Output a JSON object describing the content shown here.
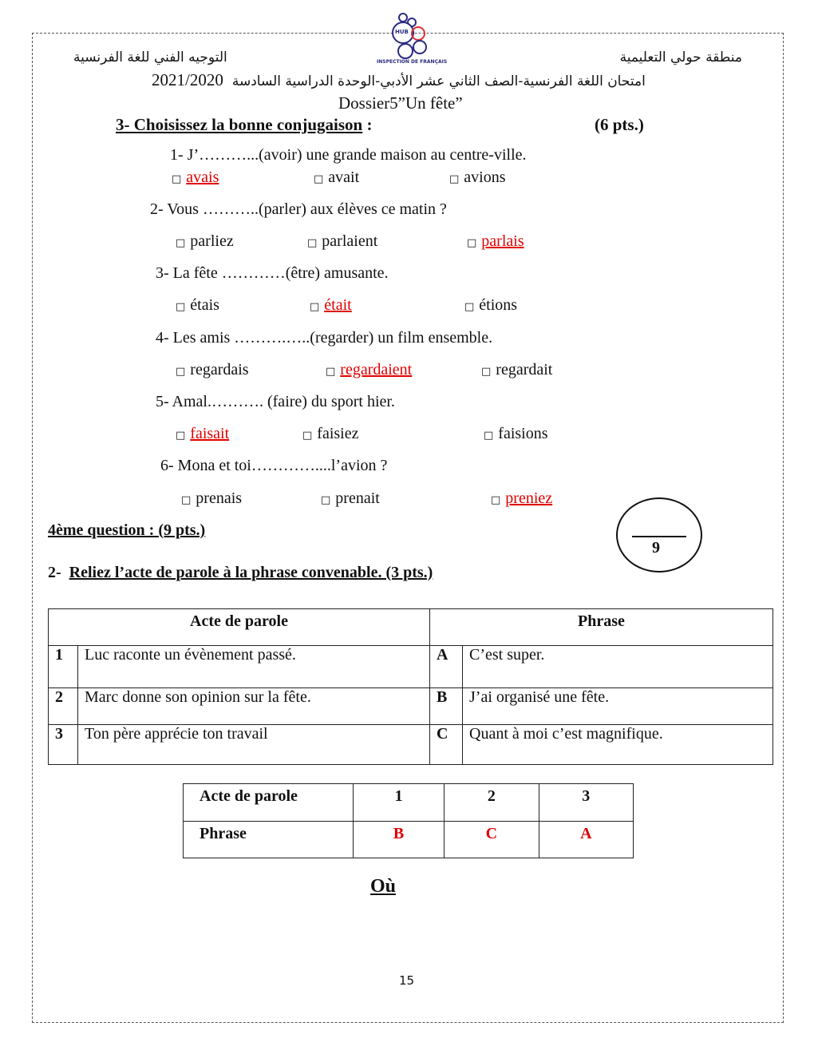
{
  "header": {
    "left_arabic": "التوجيه الفني للغة الفرنسية",
    "right_arabic": "منطقة حولي التعليمية",
    "exam_arabic": "امتحان اللغة الفرنسية-الصف الثاني عشر الأدبي-الوحدة الدراسية السادسة",
    "year": "2021/2020",
    "dossier": "Dossier5”Un fête”",
    "logo_text": "INSPECTION DE FRANÇAIS",
    "logo_badge": "HUB"
  },
  "section3": {
    "title": "3- Choisissez la bonne conjugaison",
    "colon": ":",
    "points": "(6 pts.)",
    "questions": [
      {
        "text": "1- J’………...(avoir) une grande maison au centre-ville.",
        "options": [
          "avais",
          "avait",
          "avions"
        ],
        "correct": 0
      },
      {
        "text": "2- Vous ………..(parler) aux élèves ce matin ?",
        "options": [
          "parliez",
          "parlaient",
          "parlais"
        ],
        "correct": 2
      },
      {
        "text": "3- La fête …………(être) amusante.",
        "options": [
          "étais",
          "était",
          "étions"
        ],
        "correct": 1
      },
      {
        "text": "4- Les amis ……….…..(regarder) un film ensemble.",
        "options": [
          "regardais",
          "regardaient",
          "regardait"
        ],
        "correct": 1
      },
      {
        "text": "5- Amal.………. (faire) du sport hier.",
        "options": [
          "faisait",
          "faisiez",
          "faisions"
        ],
        "correct": 0
      },
      {
        "text": "6- Mona et toi…………....l’avion ?",
        "options": [
          "prenais",
          "prenait",
          "preniez"
        ],
        "correct": 2
      }
    ]
  },
  "score": {
    "value": "9"
  },
  "section4": {
    "title": "4ème question : (9 pts.)",
    "sub_num": "2-",
    "sub_title": "Reliez l’acte de parole à la phrase convenable.   (3 pts.)"
  },
  "match_table": {
    "headers": [
      "Acte de parole",
      "Phrase"
    ],
    "rows": [
      {
        "num": "1",
        "acte": "Luc raconte un évènement passé.",
        "letter": "A",
        "phrase": "C’est super."
      },
      {
        "num": "2",
        "acte": "Marc donne son opinion sur la fête.",
        "letter": "B",
        "phrase": "J’ai organisé une fête."
      },
      {
        "num": "3",
        "acte": "Ton père apprécie ton travail",
        "letter": "C",
        "phrase": "Quant à moi c’est magnifique."
      }
    ]
  },
  "answer_table": {
    "row1_label": "Acte de parole",
    "row2_label": "Phrase",
    "cols": [
      "1",
      "2",
      "3"
    ],
    "answers": [
      "B",
      "C",
      "A"
    ]
  },
  "ou": "Où",
  "page_number": "15",
  "checkbox_glyph": "□"
}
